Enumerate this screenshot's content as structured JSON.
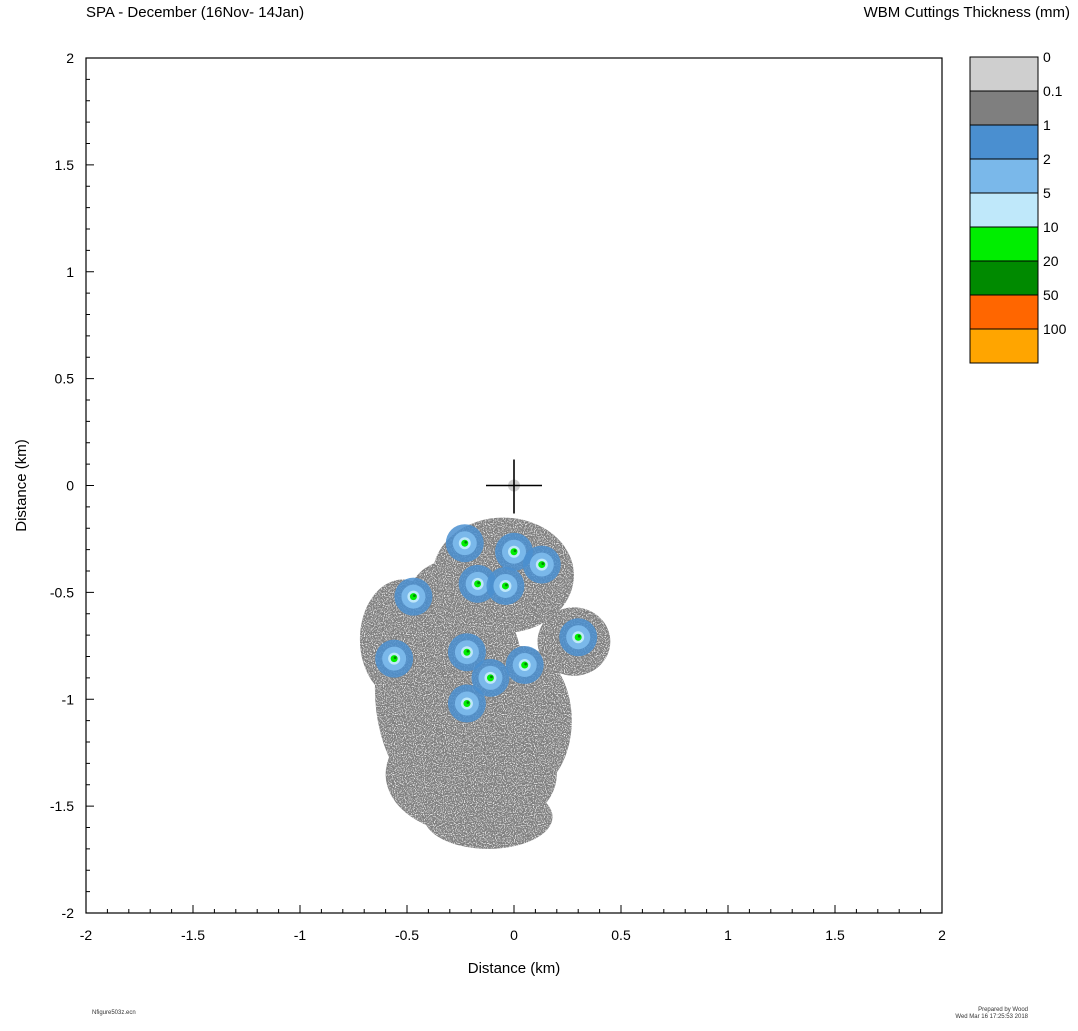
{
  "chart_data": {
    "type": "heatmap",
    "title": "SPA - December (16Nov- 14Jan)",
    "legend_title": "WBM Cuttings Thickness (mm)",
    "xlabel": "Distance (km)",
    "ylabel": "Distance (km)",
    "xlim": [
      -2,
      2
    ],
    "ylim": [
      -2,
      2
    ],
    "x_ticks": [
      "-2",
      "-1.5",
      "-1",
      "-0.5",
      "0",
      "0.5",
      "1",
      "1.5",
      "2"
    ],
    "y_ticks": [
      "2",
      "1.5",
      "1",
      "0.5",
      "0",
      "-0.5",
      "-1",
      "-1.5",
      "-2"
    ],
    "legend_placement": "right",
    "legend": [
      {
        "label": "0",
        "color": "#cfcfcf"
      },
      {
        "label": "0.1",
        "color": "#7f7f7f"
      },
      {
        "label": "1",
        "color": "#4a8fd0"
      },
      {
        "label": "2",
        "color": "#7ab8ea"
      },
      {
        "label": "5",
        "color": "#bfe8fa"
      },
      {
        "label": "10",
        "color": "#00ee00"
      },
      {
        "label": "20",
        "color": "#008a00"
      },
      {
        "label": "50",
        "color": "#ff6600"
      },
      {
        "label": "100",
        "color": "#ffa500"
      }
    ],
    "discharge_site": {
      "x": 0,
      "y": 0
    },
    "deposition_footprint": {
      "x_range": [
        -0.75,
        0.45
      ],
      "y_range": [
        -1.8,
        -0.15
      ]
    },
    "hotspots": [
      {
        "x": -0.23,
        "y": -0.27
      },
      {
        "x": 0.0,
        "y": -0.31
      },
      {
        "x": 0.13,
        "y": -0.37
      },
      {
        "x": -0.17,
        "y": -0.46
      },
      {
        "x": -0.04,
        "y": -0.47
      },
      {
        "x": -0.47,
        "y": -0.52
      },
      {
        "x": 0.3,
        "y": -0.71
      },
      {
        "x": -0.22,
        "y": -0.78
      },
      {
        "x": -0.56,
        "y": -0.81
      },
      {
        "x": 0.05,
        "y": -0.84
      },
      {
        "x": -0.22,
        "y": -1.02
      },
      {
        "x": -0.11,
        "y": -0.9
      }
    ]
  },
  "footer": {
    "left": "Nfigure503z.ecn",
    "right_line1": "Prepared by Wood",
    "right_line2": "Wed Mar 16 17:25:53 2018"
  }
}
